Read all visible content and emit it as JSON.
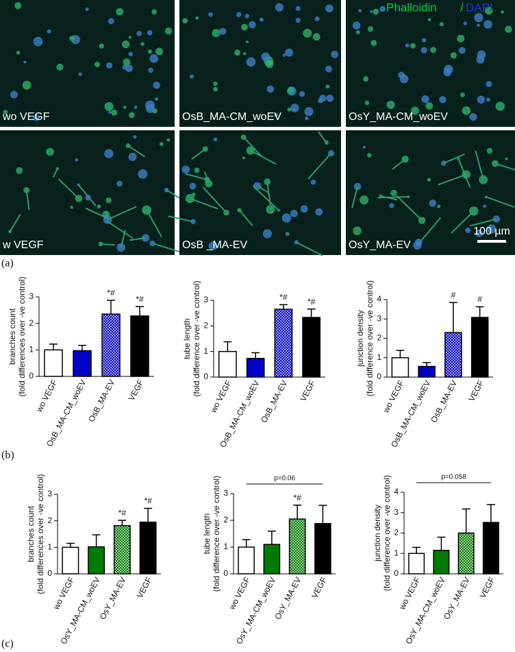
{
  "images": [
    {
      "label": "wo VEGF"
    },
    {
      "label": "OsB_MA-CM_woEV"
    },
    {
      "label": "OsY_MA-CM_woEV"
    },
    {
      "label": "w VEGF"
    },
    {
      "label": "OsB _MA-EV"
    },
    {
      "label": "OsY_MA-EV"
    }
  ],
  "stain_legend": [
    "Phalloidin",
    "/",
    "DAPI"
  ],
  "scale_bar": "100 µm",
  "panel_labels": [
    "(a)",
    "(b)",
    "(c)"
  ],
  "chart_data": [
    {
      "type": "bar",
      "ylabel_lines": [
        "branches count",
        "(fold differences  over -ve control)"
      ],
      "categories": [
        "wo VEGF",
        "OsB_MA-CM_woEV",
        "OsB_MA-EV",
        "VEGF"
      ],
      "values": [
        1.0,
        0.97,
        2.35,
        2.28
      ],
      "errors": [
        0.22,
        0.2,
        0.52,
        0.35
      ],
      "colors": [
        "#ffffff",
        "#0000c8",
        "#0000c8",
        "#000000"
      ],
      "hatched": [
        false,
        false,
        true,
        false
      ],
      "annotations": [
        {
          "bar": 2,
          "text": "*#"
        },
        {
          "bar": 3,
          "text": "*#"
        }
      ],
      "ylim": [
        0,
        3
      ],
      "yticks": [
        0,
        1,
        2,
        3
      ]
    },
    {
      "type": "bar",
      "ylabel_lines": [
        "tube length",
        "(fold difference over -ve control)"
      ],
      "categories": [
        "wo VEGF",
        "OsB_MA-CM_woEV",
        "OsB_MA-EV",
        "VEGF"
      ],
      "values": [
        1.0,
        0.73,
        2.65,
        2.33
      ],
      "errors": [
        0.38,
        0.22,
        0.18,
        0.33
      ],
      "colors": [
        "#ffffff",
        "#0000c8",
        "#0000c8",
        "#000000"
      ],
      "hatched": [
        false,
        false,
        true,
        false
      ],
      "annotations": [
        {
          "bar": 2,
          "text": "*#"
        },
        {
          "bar": 3,
          "text": "*#"
        }
      ],
      "ylim": [
        0,
        3
      ],
      "yticks": [
        0,
        1,
        2,
        3
      ]
    },
    {
      "type": "bar",
      "ylabel_lines": [
        "junction density",
        "(fold difference over -ve control)"
      ],
      "categories": [
        "wo VEGF",
        "OsB_MA-CM_woEV",
        "OsB_MA-EV",
        "VEGF"
      ],
      "values": [
        1.0,
        0.55,
        2.3,
        3.08
      ],
      "errors": [
        0.38,
        0.2,
        1.55,
        0.55
      ],
      "colors": [
        "#ffffff",
        "#0000c8",
        "#0000c8",
        "#000000"
      ],
      "hatched": [
        false,
        false,
        true,
        false
      ],
      "annotations": [
        {
          "bar": 2,
          "text": "#"
        },
        {
          "bar": 3,
          "text": "#"
        }
      ],
      "ylim": [
        0,
        4
      ],
      "yticks": [
        0,
        1,
        2,
        3,
        4
      ]
    },
    {
      "type": "bar",
      "ylabel_lines": [
        "branches count",
        "(fold differences  over -ve control)"
      ],
      "categories": [
        "wo VEGF",
        "OsY_MA-CM_woEV",
        "OsY_MA-EV",
        "VEGF"
      ],
      "values": [
        1.0,
        1.02,
        1.82,
        1.95
      ],
      "errors": [
        0.15,
        0.45,
        0.2,
        0.52
      ],
      "colors": [
        "#ffffff",
        "#007a00",
        "#007a00",
        "#000000"
      ],
      "hatched": [
        false,
        false,
        true,
        false
      ],
      "annotations": [
        {
          "bar": 2,
          "text": "*#"
        },
        {
          "bar": 3,
          "text": "*#"
        }
      ],
      "ylim": [
        0,
        3
      ],
      "yticks": [
        0,
        1,
        2,
        3
      ]
    },
    {
      "type": "bar",
      "ylabel_lines": [
        "tube length",
        "(fold difference over -ve control)"
      ],
      "categories": [
        "wo VEGF",
        "OsY_MA-CM_woEV",
        "OsY_MA-EV",
        "VEGF"
      ],
      "values": [
        1.0,
        1.1,
        2.05,
        1.88
      ],
      "errors": [
        0.28,
        0.5,
        0.52,
        0.68
      ],
      "colors": [
        "#ffffff",
        "#007a00",
        "#007a00",
        "#000000"
      ],
      "hatched": [
        false,
        false,
        true,
        false
      ],
      "annotations": [
        {
          "bar": 2,
          "text": "*#"
        }
      ],
      "bracket": {
        "from": 0,
        "to": 3,
        "text": "p=0.06"
      },
      "ylim": [
        0,
        3
      ],
      "yticks": [
        0,
        1,
        2,
        3
      ]
    },
    {
      "type": "bar",
      "ylabel_lines": [
        "junction density",
        "(fold difference over -ve control)"
      ],
      "categories": [
        "wo VEGF",
        "OsY_MA-CM_woEV",
        "OsY_MA-EV",
        "VEGF"
      ],
      "values": [
        1.0,
        1.15,
        2.0,
        2.52
      ],
      "errors": [
        0.3,
        0.65,
        1.18,
        0.88
      ],
      "colors": [
        "#ffffff",
        "#007a00",
        "#007a00",
        "#000000"
      ],
      "hatched": [
        false,
        false,
        true,
        false
      ],
      "bracket": {
        "from": 0,
        "to": 3,
        "text": "p=0.058"
      },
      "ylim": [
        0,
        4
      ],
      "yticks": [
        0,
        1,
        2,
        3,
        4
      ]
    }
  ]
}
